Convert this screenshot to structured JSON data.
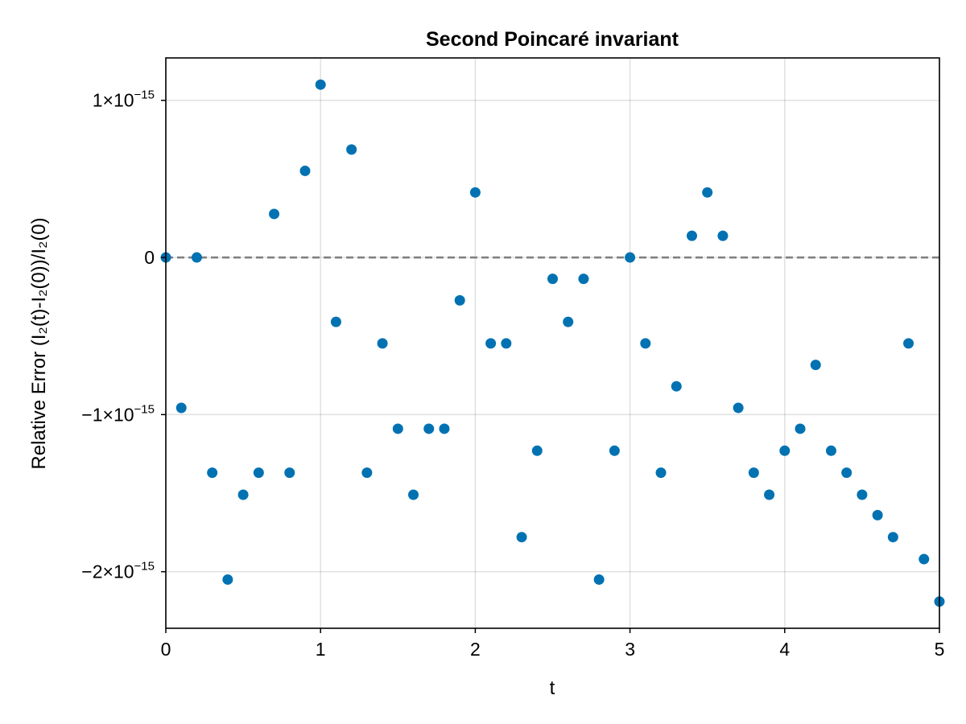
{
  "chart_data": {
    "type": "scatter",
    "title": "Second Poincaré invariant",
    "xlabel": "t",
    "ylabel": "Relative Error (I₂(t)-I₂(0))/I₂(0)",
    "xlim": [
      0,
      5
    ],
    "ylim": [
      -2.36e-15,
      1.27e-15
    ],
    "grid": true,
    "marker_color": "#0072B2",
    "reference_line": {
      "y": 0,
      "style": "dashed",
      "color": "#808080"
    },
    "x_ticks": [
      {
        "value": 0,
        "label": "0"
      },
      {
        "value": 1,
        "label": "1"
      },
      {
        "value": 2,
        "label": "2"
      },
      {
        "value": 3,
        "label": "3"
      },
      {
        "value": 4,
        "label": "4"
      },
      {
        "value": 5,
        "label": "5"
      }
    ],
    "y_ticks": [
      {
        "value": 1e-15,
        "mantissa": "1×10",
        "exponent": "−15"
      },
      {
        "value": 0,
        "mantissa": "0",
        "exponent": ""
      },
      {
        "value": -1e-15,
        "mantissa": "−1×10",
        "exponent": "−15"
      },
      {
        "value": -2e-15,
        "mantissa": "−2×10",
        "exponent": "−15"
      }
    ],
    "x": [
      0.0,
      0.1,
      0.2,
      0.3,
      0.4,
      0.5,
      0.6,
      0.7,
      0.8,
      0.9,
      1.0,
      1.1,
      1.2,
      1.3,
      1.4,
      1.5,
      1.6,
      1.7,
      1.8,
      1.9,
      2.0,
      2.1,
      2.2,
      2.3,
      2.4,
      2.5,
      2.6,
      2.7,
      2.8,
      2.9,
      3.0,
      3.1,
      3.2,
      3.3,
      3.4,
      3.5,
      3.6,
      3.7,
      3.8,
      3.9,
      4.0,
      4.1,
      4.2,
      4.3,
      4.4,
      4.5,
      4.6,
      4.7,
      4.8,
      4.9,
      5.0
    ],
    "y": [
      0,
      -9.57e-16,
      0,
      -1.37e-15,
      -2.05e-15,
      -1.51e-15,
      -1.37e-15,
      2.77e-16,
      -1.37e-15,
      5.51e-16,
      1.1e-15,
      -4.1e-16,
      6.87e-16,
      -1.37e-15,
      -5.47e-16,
      -1.09e-15,
      -1.51e-15,
      -1.09e-15,
      -1.09e-15,
      -2.73e-16,
      4.14e-16,
      -5.47e-16,
      -5.47e-16,
      -1.78e-15,
      -1.23e-15,
      -1.36e-16,
      -4.1e-16,
      -1.36e-16,
      -2.05e-15,
      -1.23e-15,
      0,
      -5.47e-16,
      -1.37e-15,
      -8.2e-16,
      1.38e-16,
      4.14e-16,
      1.38e-16,
      -9.57e-16,
      -1.37e-15,
      -1.51e-15,
      -1.23e-15,
      -1.09e-15,
      -6.84e-16,
      -1.23e-15,
      -1.37e-15,
      -1.51e-15,
      -1.64e-15,
      -1.78e-15,
      -5.47e-16,
      -1.92e-15,
      -2.19e-15
    ]
  }
}
